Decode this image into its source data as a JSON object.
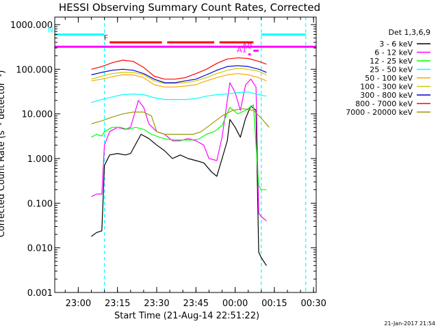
{
  "chart_data": {
    "type": "line",
    "title": "HESSI Observing Summary Count Rates, Corrected",
    "xlabel": "Start Time (21-Aug-14 22:51:22)",
    "ylabel": "Corrected Count Rate (s⁻¹ detector⁻¹)",
    "footer": "21-Jan-2017 21:54",
    "y_scale": "log",
    "ylim": [
      0.001,
      1000
    ],
    "y_ticks": [
      "0.001",
      "0.010",
      "0.100",
      "1.000",
      "10.000",
      "100.000",
      "1000.000"
    ],
    "xlim": [
      "22:51",
      "00:31"
    ],
    "x_ticks": [
      "23:00",
      "23:15",
      "23:30",
      "23:45",
      "00:00",
      "00:15",
      "00:30"
    ],
    "legend_title": "Det 1,3,6,9",
    "legend_position": "right",
    "series": [
      {
        "name": "3 - 6 keV",
        "color": "#000000",
        "points": [
          [
            "23:05",
            0.018
          ],
          [
            "23:07",
            0.022
          ],
          [
            "23:09",
            0.024
          ],
          [
            "23:10",
            0.7
          ],
          [
            "23:12",
            1.2
          ],
          [
            "23:15",
            1.3
          ],
          [
            "23:18",
            1.2
          ],
          [
            "23:20",
            1.3
          ],
          [
            "23:24",
            3.5
          ],
          [
            "23:27",
            2.8
          ],
          [
            "23:30",
            2.0
          ],
          [
            "23:33",
            1.5
          ],
          [
            "23:36",
            1.0
          ],
          [
            "23:39",
            1.2
          ],
          [
            "23:42",
            1.0
          ],
          [
            "23:45",
            0.9
          ],
          [
            "23:48",
            0.8
          ],
          [
            "23:51",
            0.5
          ],
          [
            "23:53",
            0.4
          ],
          [
            "23:55",
            1.0
          ],
          [
            "23:57",
            2.5
          ],
          [
            "23:58",
            7.5
          ],
          [
            "00:00",
            5.0
          ],
          [
            "00:02",
            3.0
          ],
          [
            "00:04",
            8.0
          ],
          [
            "00:06",
            15.0
          ],
          [
            "00:08",
            12.0
          ],
          [
            "00:09",
            0.008
          ],
          [
            "00:10",
            0.006
          ],
          [
            "00:12",
            0.004
          ]
        ]
      },
      {
        "name": "6 - 12 keV",
        "color": "#ff00ff",
        "points": [
          [
            "23:05",
            0.14
          ],
          [
            "23:07",
            0.16
          ],
          [
            "23:09",
            0.16
          ],
          [
            "23:10",
            2.0
          ],
          [
            "23:12",
            4.0
          ],
          [
            "23:15",
            5.0
          ],
          [
            "23:18",
            4.5
          ],
          [
            "23:20",
            5.0
          ],
          [
            "23:23",
            20.0
          ],
          [
            "23:25",
            14.0
          ],
          [
            "23:27",
            6.0
          ],
          [
            "23:30",
            4.0
          ],
          [
            "23:33",
            3.5
          ],
          [
            "23:36",
            2.5
          ],
          [
            "23:39",
            2.5
          ],
          [
            "23:42",
            2.8
          ],
          [
            "23:45",
            2.5
          ],
          [
            "23:48",
            2.0
          ],
          [
            "23:50",
            1.0
          ],
          [
            "23:53",
            0.9
          ],
          [
            "23:55",
            3.0
          ],
          [
            "23:57",
            20.0
          ],
          [
            "23:58",
            50.0
          ],
          [
            "00:00",
            30.0
          ],
          [
            "00:02",
            12.0
          ],
          [
            "00:04",
            45.0
          ],
          [
            "00:06",
            60.0
          ],
          [
            "00:08",
            40.0
          ],
          [
            "00:09",
            0.06
          ],
          [
            "00:10",
            0.05
          ],
          [
            "00:12",
            0.04
          ]
        ]
      },
      {
        "name": "12 - 25 keV",
        "color": "#00ff00",
        "points": [
          [
            "23:05",
            3.0
          ],
          [
            "23:07",
            3.5
          ],
          [
            "23:09",
            3.2
          ],
          [
            "23:10",
            4.0
          ],
          [
            "23:13",
            5.0
          ],
          [
            "23:16",
            5.0
          ],
          [
            "23:19",
            4.5
          ],
          [
            "23:22",
            5.0
          ],
          [
            "23:25",
            4.5
          ],
          [
            "23:28",
            3.5
          ],
          [
            "23:31",
            3.0
          ],
          [
            "23:34",
            2.7
          ],
          [
            "23:37",
            2.6
          ],
          [
            "23:40",
            2.6
          ],
          [
            "23:43",
            2.6
          ],
          [
            "23:46",
            2.7
          ],
          [
            "23:49",
            3.5
          ],
          [
            "23:52",
            4.0
          ],
          [
            "23:55",
            5.5
          ],
          [
            "23:58",
            14.0
          ],
          [
            "00:01",
            10.0
          ],
          [
            "00:04",
            12.0
          ],
          [
            "00:07",
            16.0
          ],
          [
            "00:09",
            0.25
          ],
          [
            "00:10",
            0.2
          ],
          [
            "00:12",
            0.2
          ]
        ]
      },
      {
        "name": "25 - 50 keV",
        "color": "#00ffff",
        "points": [
          [
            "23:05",
            18.0
          ],
          [
            "23:09",
            21.0
          ],
          [
            "23:13",
            24.0
          ],
          [
            "23:17",
            27.0
          ],
          [
            "23:21",
            28.0
          ],
          [
            "23:25",
            27.0
          ],
          [
            "23:29",
            23.0
          ],
          [
            "23:33",
            21.0
          ],
          [
            "23:37",
            21.0
          ],
          [
            "23:41",
            21.0
          ],
          [
            "23:45",
            22.0
          ],
          [
            "23:49",
            25.0
          ],
          [
            "23:53",
            27.0
          ],
          [
            "23:57",
            28.0
          ],
          [
            "00:01",
            30.0
          ],
          [
            "00:05",
            31.0
          ],
          [
            "00:09",
            27.0
          ],
          [
            "00:12",
            25.0
          ]
        ]
      },
      {
        "name": "50 - 100 keV",
        "color": "#ffa500",
        "points": [
          [
            "23:05",
            55.0
          ],
          [
            "23:09",
            60.0
          ],
          [
            "23:13",
            68.0
          ],
          [
            "23:17",
            75.0
          ],
          [
            "23:21",
            75.0
          ],
          [
            "23:25",
            65.0
          ],
          [
            "23:29",
            45.0
          ],
          [
            "23:33",
            40.0
          ],
          [
            "23:37",
            40.0
          ],
          [
            "23:41",
            42.0
          ],
          [
            "23:45",
            45.0
          ],
          [
            "23:49",
            55.0
          ],
          [
            "23:53",
            65.0
          ],
          [
            "23:57",
            75.0
          ],
          [
            "00:01",
            80.0
          ],
          [
            "00:05",
            75.0
          ],
          [
            "00:09",
            65.0
          ],
          [
            "00:12",
            55.0
          ]
        ]
      },
      {
        "name": "100 - 300 keV",
        "color": "#cccc00",
        "points": [
          [
            "23:05",
            60.0
          ],
          [
            "23:09",
            70.0
          ],
          [
            "23:13",
            80.0
          ],
          [
            "23:17",
            85.0
          ],
          [
            "23:21",
            85.0
          ],
          [
            "23:25",
            75.0
          ],
          [
            "23:29",
            55.0
          ],
          [
            "23:33",
            48.0
          ],
          [
            "23:37",
            48.0
          ],
          [
            "23:41",
            50.0
          ],
          [
            "23:45",
            55.0
          ],
          [
            "23:49",
            65.0
          ],
          [
            "23:53",
            80.0
          ],
          [
            "23:57",
            95.0
          ],
          [
            "00:01",
            105.0
          ],
          [
            "00:05",
            100.0
          ],
          [
            "00:09",
            90.0
          ],
          [
            "00:12",
            75.0
          ]
        ]
      },
      {
        "name": "300 - 800 keV",
        "color": "#0000cc",
        "points": [
          [
            "23:05",
            75.0
          ],
          [
            "23:09",
            85.0
          ],
          [
            "23:13",
            95.0
          ],
          [
            "23:17",
            100.0
          ],
          [
            "23:21",
            95.0
          ],
          [
            "23:25",
            80.0
          ],
          [
            "23:29",
            60.0
          ],
          [
            "23:33",
            50.0
          ],
          [
            "23:37",
            50.0
          ],
          [
            "23:41",
            55.0
          ],
          [
            "23:45",
            60.0
          ],
          [
            "23:49",
            75.0
          ],
          [
            "23:53",
            95.0
          ],
          [
            "23:57",
            115.0
          ],
          [
            "00:01",
            120.0
          ],
          [
            "00:05",
            115.0
          ],
          [
            "00:09",
            100.0
          ],
          [
            "00:12",
            85.0
          ]
        ]
      },
      {
        "name": "800 - 7000 keV",
        "color": "#ff0000",
        "points": [
          [
            "23:05",
            100.0
          ],
          [
            "23:09",
            115.0
          ],
          [
            "23:13",
            140.0
          ],
          [
            "23:17",
            160.0
          ],
          [
            "23:21",
            150.0
          ],
          [
            "23:25",
            110.0
          ],
          [
            "23:29",
            70.0
          ],
          [
            "23:33",
            60.0
          ],
          [
            "23:37",
            60.0
          ],
          [
            "23:41",
            65.0
          ],
          [
            "23:45",
            80.0
          ],
          [
            "23:49",
            100.0
          ],
          [
            "23:53",
            135.0
          ],
          [
            "23:57",
            170.0
          ],
          [
            "00:01",
            180.0
          ],
          [
            "00:05",
            175.0
          ],
          [
            "00:09",
            150.0
          ],
          [
            "00:12",
            130.0
          ]
        ]
      },
      {
        "name": "7000 - 20000 keV",
        "color": "#999900",
        "points": [
          [
            "23:05",
            6.0
          ],
          [
            "23:09",
            7.0
          ],
          [
            "23:13",
            8.5
          ],
          [
            "23:17",
            10.0
          ],
          [
            "23:21",
            11.0
          ],
          [
            "23:25",
            11.0
          ],
          [
            "23:28",
            9.0
          ],
          [
            "23:30",
            4.0
          ],
          [
            "23:33",
            3.5
          ],
          [
            "23:36",
            3.5
          ],
          [
            "23:40",
            3.5
          ],
          [
            "23:44",
            3.5
          ],
          [
            "23:47",
            4.0
          ],
          [
            "23:51",
            6.0
          ],
          [
            "23:55",
            9.0
          ],
          [
            "23:59",
            12.0
          ],
          [
            "00:03",
            13.0
          ],
          [
            "00:07",
            12.0
          ],
          [
            "00:10",
            8.0
          ],
          [
            "00:13",
            5.0
          ]
        ]
      }
    ],
    "flag_bars": [
      {
        "label": "N",
        "color": "#00ffff",
        "value": 600,
        "segments": [
          [
            "22:51",
            "23:10"
          ],
          [
            "00:10",
            "00:27"
          ]
        ]
      },
      {
        "label": "F",
        "color": "#ff0000",
        "value": 400,
        "segments": [
          [
            "23:12",
            "23:32"
          ],
          [
            "23:34",
            "23:52"
          ],
          [
            "23:54",
            "00:07"
          ]
        ]
      },
      {
        "label": "",
        "color": "#ff00ff",
        "value": 320,
        "segments": [
          [
            "22:51",
            "00:31"
          ]
        ]
      },
      {
        "label": "A1",
        "color": "#ff00ff",
        "value": 215,
        "segments": [
          [
            "00:05",
            "00:06"
          ]
        ]
      },
      {
        "label": "A0",
        "color": "#ff00ff",
        "value": 260,
        "segments": [
          [
            "00:07",
            "00:09"
          ]
        ]
      }
    ],
    "vertical_markers": [
      {
        "color": "#00ffff",
        "x": "23:10"
      },
      {
        "color": "#00ffff",
        "x": "00:10"
      },
      {
        "color": "#00ffff",
        "x": "00:27"
      }
    ]
  }
}
